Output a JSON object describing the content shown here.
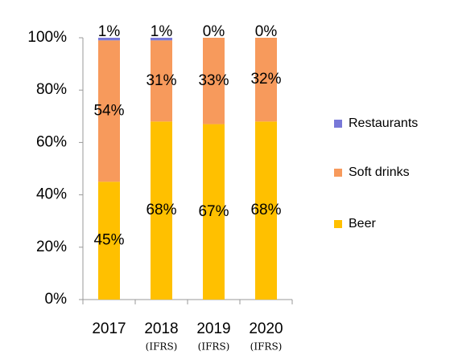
{
  "chart_data": {
    "type": "stacked_bar",
    "categories": [
      "2017",
      "2018",
      "2019",
      "2020"
    ],
    "category_notes": [
      null,
      "(IFRS)",
      "(IFRS)",
      "(IFRS)"
    ],
    "series": [
      {
        "name": "Beer",
        "color": "#ffc000",
        "values": [
          45,
          68,
          67,
          68
        ],
        "value_labels": [
          "45%",
          "68%",
          "67%",
          "68%"
        ]
      },
      {
        "name": "Soft drinks",
        "color": "#f79a5c",
        "values": [
          54,
          31,
          33,
          32
        ],
        "value_labels": [
          "54%",
          "31%",
          "33%",
          "32%"
        ]
      },
      {
        "name": "Restaurants",
        "color": "#7878d8",
        "values": [
          1,
          1,
          0,
          0
        ],
        "value_labels": [
          "1%",
          "1%",
          "0%",
          "0%"
        ]
      }
    ],
    "ylim": [
      0,
      100
    ],
    "yticks": [
      {
        "value": 0,
        "label": "0%"
      },
      {
        "value": 20,
        "label": "20%"
      },
      {
        "value": 40,
        "label": "40%"
      },
      {
        "value": 60,
        "label": "60%"
      },
      {
        "value": 80,
        "label": "80%"
      },
      {
        "value": 100,
        "label": "100%"
      }
    ],
    "legend": "right"
  }
}
